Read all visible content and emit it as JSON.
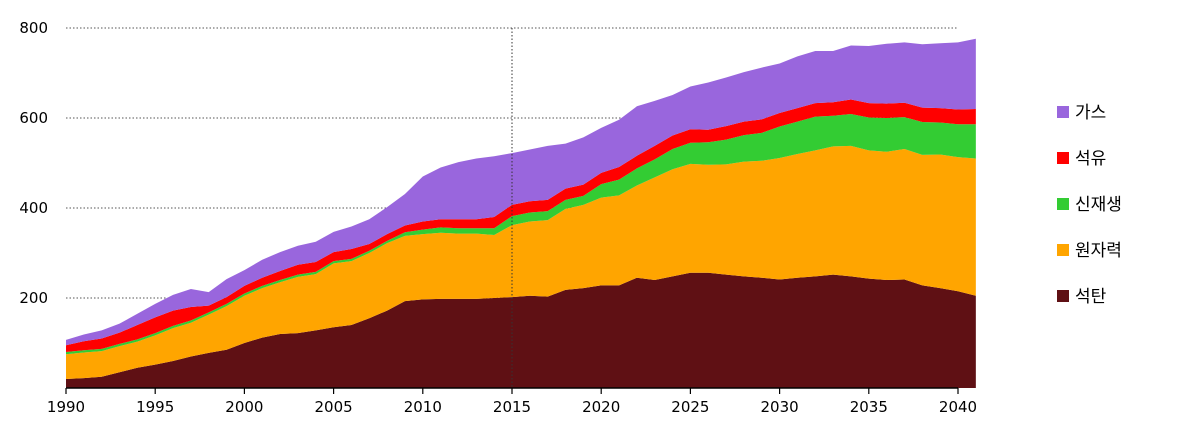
{
  "chart_data": {
    "type": "area",
    "stacked": true,
    "x_start": 1990,
    "x_end": 2040,
    "xlim": [
      1990,
      2040
    ],
    "ylim": [
      0,
      800
    ],
    "x_ticks": [
      1990,
      1995,
      2000,
      2005,
      2010,
      2015,
      2020,
      2025,
      2030,
      2035,
      2040
    ],
    "y_ticks": [
      200,
      400,
      600,
      800
    ],
    "grid": "horizontal dotted",
    "reference_line_x": 2015,
    "legend_position": "right",
    "series": [
      {
        "name": "석탄",
        "color": "#5f1014",
        "values": [
          20,
          22,
          25,
          35,
          45,
          52,
          60,
          70,
          78,
          85,
          100,
          112,
          120,
          122,
          128,
          135,
          140,
          155,
          172,
          193,
          197,
          198,
          198,
          198,
          200,
          202,
          205,
          203,
          218,
          222,
          228,
          228,
          245,
          240,
          248,
          256,
          256,
          252,
          248,
          245,
          241,
          245,
          248,
          252,
          248,
          243,
          240,
          241,
          228,
          222,
          215,
          205
        ]
      },
      {
        "name": "원자력",
        "color": "#ffa500",
        "values": [
          55,
          57,
          57,
          58,
          58,
          65,
          73,
          75,
          85,
          97,
          105,
          110,
          115,
          125,
          125,
          142,
          142,
          145,
          150,
          145,
          145,
          147,
          145,
          145,
          140,
          160,
          165,
          170,
          180,
          185,
          195,
          200,
          205,
          228,
          238,
          242,
          240,
          245,
          255,
          260,
          270,
          275,
          280,
          285,
          290,
          285,
          285,
          290,
          290,
          297,
          298,
          305
        ]
      },
      {
        "name": "신재생",
        "color": "#33cc33",
        "values": [
          5,
          5,
          5,
          5,
          5,
          5,
          5,
          5,
          5,
          5,
          5,
          5,
          5,
          5,
          5,
          5,
          5,
          5,
          5,
          8,
          10,
          12,
          12,
          12,
          15,
          20,
          20,
          20,
          20,
          20,
          30,
          35,
          38,
          40,
          45,
          47,
          50,
          55,
          59,
          62,
          70,
          72,
          75,
          68,
          71,
          73,
          75,
          71,
          73,
          71,
          73,
          76
        ]
      },
      {
        "name": "석유",
        "color": "#ff0000",
        "values": [
          15,
          20,
          23,
          25,
          32,
          35,
          34,
          30,
          15,
          15,
          17,
          18,
          20,
          22,
          22,
          20,
          22,
          15,
          15,
          15,
          18,
          18,
          20,
          20,
          25,
          25,
          25,
          25,
          25,
          25,
          25,
          28,
          28,
          30,
          30,
          30,
          28,
          30,
          30,
          30,
          30,
          30,
          30,
          30,
          32,
          32,
          32,
          32,
          32,
          32,
          33,
          34
        ]
      },
      {
        "name": "가스",
        "color": "#9966dd",
        "values": [
          12,
          15,
          18,
          20,
          25,
          30,
          35,
          40,
          30,
          40,
          35,
          40,
          42,
          42,
          45,
          45,
          50,
          55,
          60,
          70,
          100,
          115,
          127,
          135,
          135,
          115,
          115,
          120,
          100,
          105,
          100,
          105,
          110,
          100,
          90,
          95,
          105,
          108,
          110,
          115,
          110,
          115,
          116,
          114,
          120,
          127,
          133,
          134,
          141,
          144,
          149,
          156
        ]
      }
    ]
  }
}
